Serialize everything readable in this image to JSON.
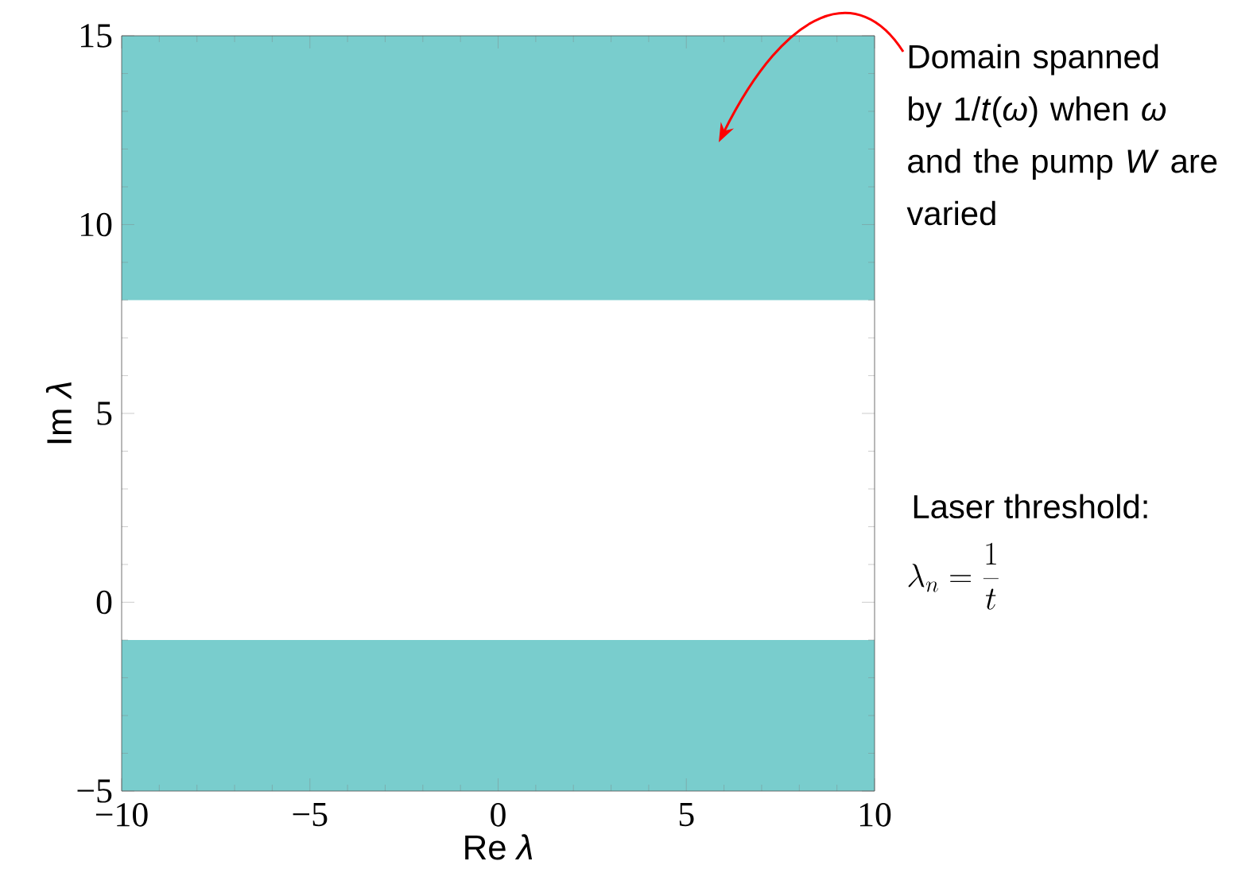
{
  "chart_data": {
    "type": "area",
    "xlabel": "Re *λ*",
    "ylabel": "Im *λ*",
    "xlim": [
      -10,
      10
    ],
    "ylim": [
      -5,
      15
    ],
    "xticks": [
      {
        "value": -10,
        "label": "−10"
      },
      {
        "value": -5,
        "label": "−5"
      },
      0,
      5,
      10
    ],
    "yticks": [
      {
        "value": -5,
        "label": "−5"
      },
      0,
      5,
      10,
      15
    ],
    "bands": [
      {
        "axis": "y",
        "from": 8,
        "to": 15,
        "color": "#79cdcd"
      },
      {
        "axis": "y",
        "from": -5,
        "to": -1,
        "color": "#79cdcd"
      }
    ],
    "annotations": [
      "Domain spanned by 1/*t*(*ω*) when *ω* and the pump *W* are varied",
      "Laser threshold:",
      "\\lambda_n = \\frac{1}{t}"
    ]
  }
}
